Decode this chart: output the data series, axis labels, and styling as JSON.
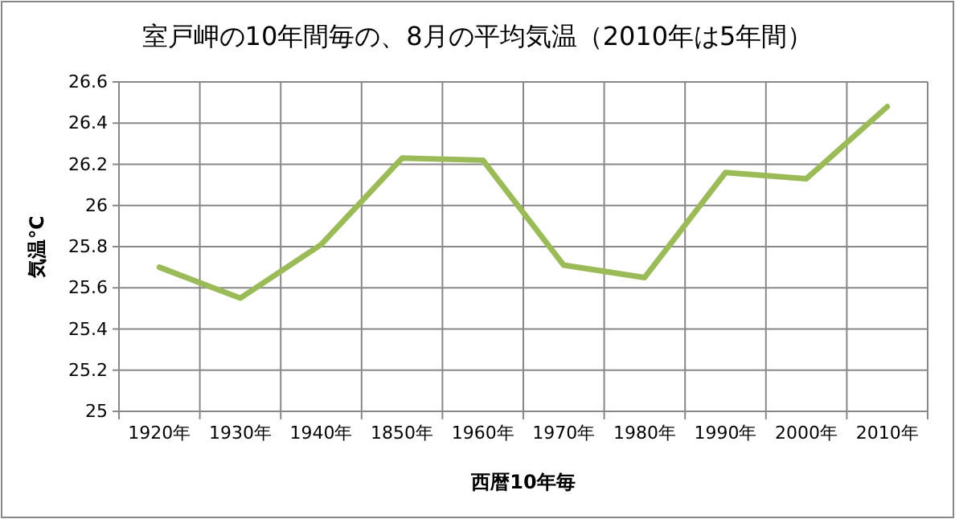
{
  "chart_data": {
    "type": "line",
    "title": "室戸岬の10年間毎の、8月の平均気温（2010年は5年間）",
    "xlabel": "西暦10年毎",
    "ylabel": "気温℃",
    "categories": [
      "1920年",
      "1930年",
      "1940年",
      "1850年",
      "1960年",
      "1970年",
      "1980年",
      "1990年",
      "2000年",
      "2010年"
    ],
    "series": [
      {
        "color": "#9bbb59",
        "values": [
          25.7,
          25.55,
          25.81,
          26.23,
          26.22,
          25.71,
          25.65,
          26.16,
          26.13,
          26.48
        ]
      }
    ],
    "ylim": [
      25,
      26.6
    ],
    "yticks": [
      25,
      25.2,
      25.4,
      25.6,
      25.8,
      26,
      26.2,
      26.4,
      26.6
    ],
    "grid": true,
    "marker": "none",
    "line_style": "solid"
  }
}
